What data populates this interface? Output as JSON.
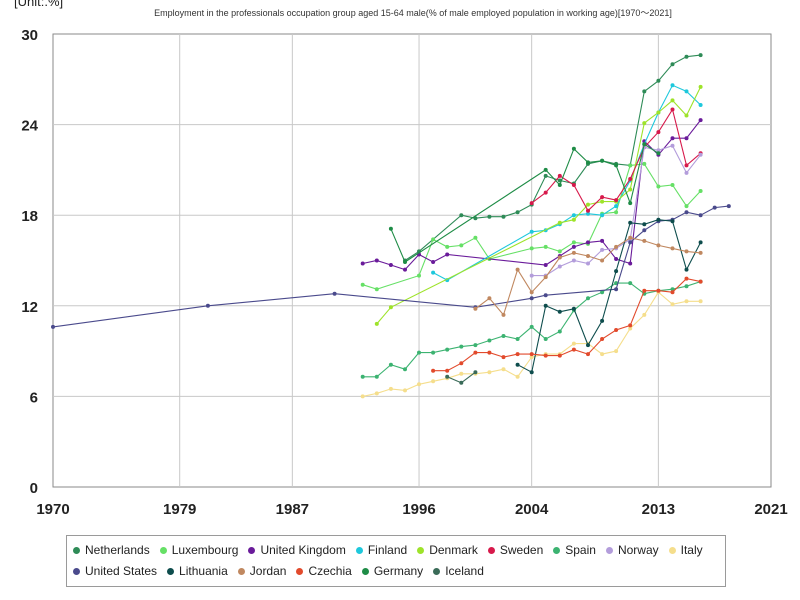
{
  "chart_data": {
    "type": "line",
    "title": "Employment in the professionals occupation group aged 15-64 male(% of male employed population in working age)[1970～2021]",
    "unit_label": "[Unit:.%]",
    "x_ticks": [
      "1970",
      "1979",
      "1987",
      "1996",
      "2004",
      "2013",
      "2021"
    ],
    "y_ticks": [
      "0",
      "6",
      "12",
      "18",
      "24",
      "30"
    ],
    "xlim": [
      1970,
      2021
    ],
    "ylim": [
      0,
      30
    ],
    "grid": true,
    "legend_position": "bottom",
    "series": [
      {
        "name": "Netherlands",
        "color": "#2e8b57",
        "points": [
          [
            1995,
            15.0
          ],
          [
            1996,
            15.6
          ],
          [
            1999,
            18.0
          ],
          [
            2000,
            17.8
          ],
          [
            2001,
            17.9
          ],
          [
            2002,
            17.9
          ],
          [
            2003,
            18.2
          ],
          [
            2004,
            18.7
          ],
          [
            2005,
            20.6
          ],
          [
            2006,
            20.3
          ],
          [
            2007,
            20.1
          ],
          [
            2008,
            21.4
          ],
          [
            2009,
            21.6
          ],
          [
            2010,
            21.4
          ],
          [
            2011,
            21.3
          ],
          [
            2012,
            26.2
          ],
          [
            2013,
            26.9
          ],
          [
            2014,
            28.0
          ],
          [
            2015,
            28.5
          ],
          [
            2016,
            28.6
          ]
        ]
      },
      {
        "name": "Luxembourg",
        "color": "#66e066",
        "points": [
          [
            1992,
            13.4
          ],
          [
            1993,
            13.1
          ],
          [
            1996,
            14.0
          ],
          [
            1997,
            16.4
          ],
          [
            1998,
            15.9
          ],
          [
            1999,
            16.0
          ],
          [
            2000,
            16.5
          ],
          [
            2001,
            15.1
          ],
          [
            2004,
            15.8
          ],
          [
            2005,
            15.9
          ],
          [
            2006,
            15.6
          ],
          [
            2007,
            16.2
          ],
          [
            2008,
            16.1
          ],
          [
            2009,
            18.1
          ],
          [
            2010,
            18.2
          ],
          [
            2011,
            21.3
          ],
          [
            2012,
            21.4
          ],
          [
            2013,
            19.9
          ],
          [
            2014,
            20.0
          ],
          [
            2015,
            18.6
          ],
          [
            2016,
            19.6
          ]
        ]
      },
      {
        "name": "United Kingdom",
        "color": "#6a1b9a",
        "points": [
          [
            1992,
            14.8
          ],
          [
            1993,
            15.0
          ],
          [
            1994,
            14.7
          ],
          [
            1995,
            14.4
          ],
          [
            1996,
            15.4
          ],
          [
            1997,
            14.9
          ],
          [
            1998,
            15.4
          ],
          [
            2005,
            14.7
          ],
          [
            2006,
            15.3
          ],
          [
            2007,
            15.9
          ],
          [
            2008,
            16.2
          ],
          [
            2009,
            16.3
          ],
          [
            2010,
            15.1
          ],
          [
            2011,
            14.8
          ],
          [
            2012,
            22.9
          ],
          [
            2013,
            22.0
          ],
          [
            2014,
            23.1
          ],
          [
            2015,
            23.1
          ],
          [
            2016,
            24.3
          ]
        ]
      },
      {
        "name": "Finland",
        "color": "#1ec8dc",
        "points": [
          [
            1997,
            14.2
          ],
          [
            1998,
            13.7
          ],
          [
            2004,
            16.9
          ],
          [
            2005,
            17.0
          ],
          [
            2006,
            17.4
          ],
          [
            2007,
            18.0
          ],
          [
            2008,
            18.1
          ],
          [
            2009,
            18.0
          ],
          [
            2010,
            18.6
          ],
          [
            2011,
            20.3
          ],
          [
            2012,
            22.7
          ],
          [
            2013,
            24.8
          ],
          [
            2014,
            26.6
          ],
          [
            2015,
            26.2
          ],
          [
            2016,
            25.3
          ]
        ]
      },
      {
        "name": "Denmark",
        "color": "#9ee32a",
        "points": [
          [
            1993,
            10.8
          ],
          [
            1994,
            11.9
          ],
          [
            2006,
            17.5
          ],
          [
            2007,
            17.7
          ],
          [
            2008,
            18.7
          ],
          [
            2009,
            18.9
          ],
          [
            2010,
            18.9
          ],
          [
            2011,
            19.7
          ],
          [
            2012,
            24.1
          ],
          [
            2013,
            24.8
          ],
          [
            2014,
            25.6
          ],
          [
            2015,
            24.6
          ],
          [
            2016,
            26.5
          ]
        ]
      },
      {
        "name": "Sweden",
        "color": "#d7194b",
        "points": [
          [
            2004,
            18.8
          ],
          [
            2005,
            19.5
          ],
          [
            2006,
            20.6
          ],
          [
            2007,
            20.0
          ],
          [
            2008,
            18.3
          ],
          [
            2009,
            19.2
          ],
          [
            2010,
            19.0
          ],
          [
            2011,
            20.4
          ],
          [
            2012,
            22.5
          ],
          [
            2013,
            23.5
          ],
          [
            2014,
            25.0
          ],
          [
            2015,
            21.3
          ],
          [
            2016,
            22.1
          ]
        ]
      },
      {
        "name": "Spain",
        "color": "#3cb371",
        "points": [
          [
            1992,
            7.3
          ],
          [
            1993,
            7.3
          ],
          [
            1994,
            8.1
          ],
          [
            1995,
            7.8
          ],
          [
            1996,
            8.9
          ],
          [
            1997,
            8.9
          ],
          [
            1998,
            9.1
          ],
          [
            1999,
            9.3
          ],
          [
            2000,
            9.4
          ],
          [
            2001,
            9.7
          ],
          [
            2002,
            10.0
          ],
          [
            2003,
            9.8
          ],
          [
            2004,
            10.6
          ],
          [
            2005,
            9.8
          ],
          [
            2006,
            10.3
          ],
          [
            2007,
            11.7
          ],
          [
            2008,
            12.5
          ],
          [
            2009,
            12.9
          ],
          [
            2010,
            13.5
          ],
          [
            2011,
            13.5
          ],
          [
            2012,
            12.8
          ],
          [
            2013,
            13.0
          ],
          [
            2014,
            13.1
          ],
          [
            2015,
            13.3
          ],
          [
            2016,
            13.6
          ]
        ]
      },
      {
        "name": "Norway",
        "color": "#b39ddb",
        "points": [
          [
            2004,
            14.0
          ],
          [
            2005,
            14.0
          ],
          [
            2006,
            14.6
          ],
          [
            2007,
            15.0
          ],
          [
            2008,
            14.8
          ],
          [
            2009,
            15.7
          ],
          [
            2010,
            15.8
          ],
          [
            2011,
            16.4
          ],
          [
            2012,
            22.5
          ],
          [
            2013,
            22.3
          ],
          [
            2014,
            22.6
          ],
          [
            2015,
            20.8
          ],
          [
            2016,
            22.0
          ]
        ]
      },
      {
        "name": "Italy",
        "color": "#f5de8c",
        "points": [
          [
            1992,
            6.0
          ],
          [
            1993,
            6.2
          ],
          [
            1994,
            6.5
          ],
          [
            1995,
            6.4
          ],
          [
            1996,
            6.8
          ],
          [
            1997,
            7.0
          ],
          [
            1998,
            7.2
          ],
          [
            1999,
            7.5
          ],
          [
            2000,
            7.5
          ],
          [
            2001,
            7.6
          ],
          [
            2002,
            7.8
          ],
          [
            2003,
            7.3
          ],
          [
            2004,
            8.6
          ],
          [
            2005,
            8.8
          ],
          [
            2006,
            8.8
          ],
          [
            2007,
            9.5
          ],
          [
            2008,
            9.5
          ],
          [
            2009,
            8.8
          ],
          [
            2010,
            9.0
          ],
          [
            2011,
            10.5
          ],
          [
            2012,
            11.4
          ],
          [
            2013,
            12.9
          ],
          [
            2014,
            12.1
          ],
          [
            2015,
            12.3
          ],
          [
            2016,
            12.3
          ]
        ]
      },
      {
        "name": "United States",
        "color": "#4a4a8c",
        "points": [
          [
            1970,
            10.6
          ],
          [
            1981,
            12.0
          ],
          [
            1990,
            12.8
          ],
          [
            2000,
            11.9
          ],
          [
            2004,
            12.5
          ],
          [
            2005,
            12.7
          ],
          [
            2010,
            13.1
          ],
          [
            2011,
            16.2
          ],
          [
            2012,
            17.0
          ],
          [
            2013,
            17.6
          ],
          [
            2014,
            17.7
          ],
          [
            2015,
            18.2
          ],
          [
            2016,
            18.0
          ],
          [
            2017,
            18.5
          ],
          [
            2018,
            18.6
          ]
        ]
      },
      {
        "name": "Lithuania",
        "color": "#0e4d4d",
        "points": [
          [
            2003,
            8.1
          ],
          [
            2004,
            7.6
          ],
          [
            2005,
            12.0
          ],
          [
            2006,
            11.6
          ],
          [
            2007,
            11.8
          ],
          [
            2008,
            9.4
          ],
          [
            2009,
            11.0
          ],
          [
            2010,
            14.3
          ],
          [
            2011,
            17.5
          ],
          [
            2012,
            17.4
          ],
          [
            2013,
            17.7
          ],
          [
            2014,
            17.6
          ],
          [
            2015,
            14.4
          ],
          [
            2016,
            16.2
          ]
        ]
      },
      {
        "name": "Jordan",
        "color": "#c08860",
        "points": [
          [
            2000,
            11.8
          ],
          [
            2001,
            12.5
          ],
          [
            2002,
            11.4
          ],
          [
            2003,
            14.4
          ],
          [
            2004,
            12.9
          ],
          [
            2005,
            13.9
          ],
          [
            2006,
            15.2
          ],
          [
            2007,
            15.5
          ],
          [
            2008,
            15.3
          ],
          [
            2009,
            15.0
          ],
          [
            2010,
            15.9
          ],
          [
            2011,
            16.5
          ],
          [
            2012,
            16.3
          ],
          [
            2013,
            16.0
          ],
          [
            2014,
            15.8
          ],
          [
            2015,
            15.6
          ],
          [
            2016,
            15.5
          ]
        ]
      },
      {
        "name": "Czechia",
        "color": "#e24a2c",
        "points": [
          [
            1997,
            7.7
          ],
          [
            1998,
            7.7
          ],
          [
            1999,
            8.2
          ],
          [
            2000,
            8.9
          ],
          [
            2001,
            8.9
          ],
          [
            2002,
            8.6
          ],
          [
            2003,
            8.8
          ],
          [
            2004,
            8.8
          ],
          [
            2005,
            8.7
          ],
          [
            2006,
            8.7
          ],
          [
            2007,
            9.1
          ],
          [
            2008,
            8.8
          ],
          [
            2009,
            9.8
          ],
          [
            2010,
            10.4
          ],
          [
            2011,
            10.7
          ],
          [
            2012,
            13.0
          ],
          [
            2013,
            13.0
          ],
          [
            2014,
            12.9
          ],
          [
            2015,
            13.8
          ],
          [
            2016,
            13.6
          ]
        ]
      },
      {
        "name": "Germany",
        "color": "#1e8c46",
        "points": [
          [
            1994,
            17.1
          ],
          [
            1995,
            14.9
          ],
          [
            2005,
            21.0
          ],
          [
            2006,
            20.0
          ],
          [
            2007,
            22.4
          ],
          [
            2008,
            21.5
          ],
          [
            2009,
            21.6
          ],
          [
            2010,
            21.3
          ],
          [
            2011,
            18.8
          ],
          [
            2012,
            22.7
          ],
          [
            2013,
            22.1
          ]
        ]
      },
      {
        "name": "Iceland",
        "color": "#3a6b58",
        "points": [
          [
            1998,
            7.3
          ],
          [
            1999,
            6.9
          ],
          [
            2000,
            7.6
          ]
        ]
      }
    ]
  }
}
